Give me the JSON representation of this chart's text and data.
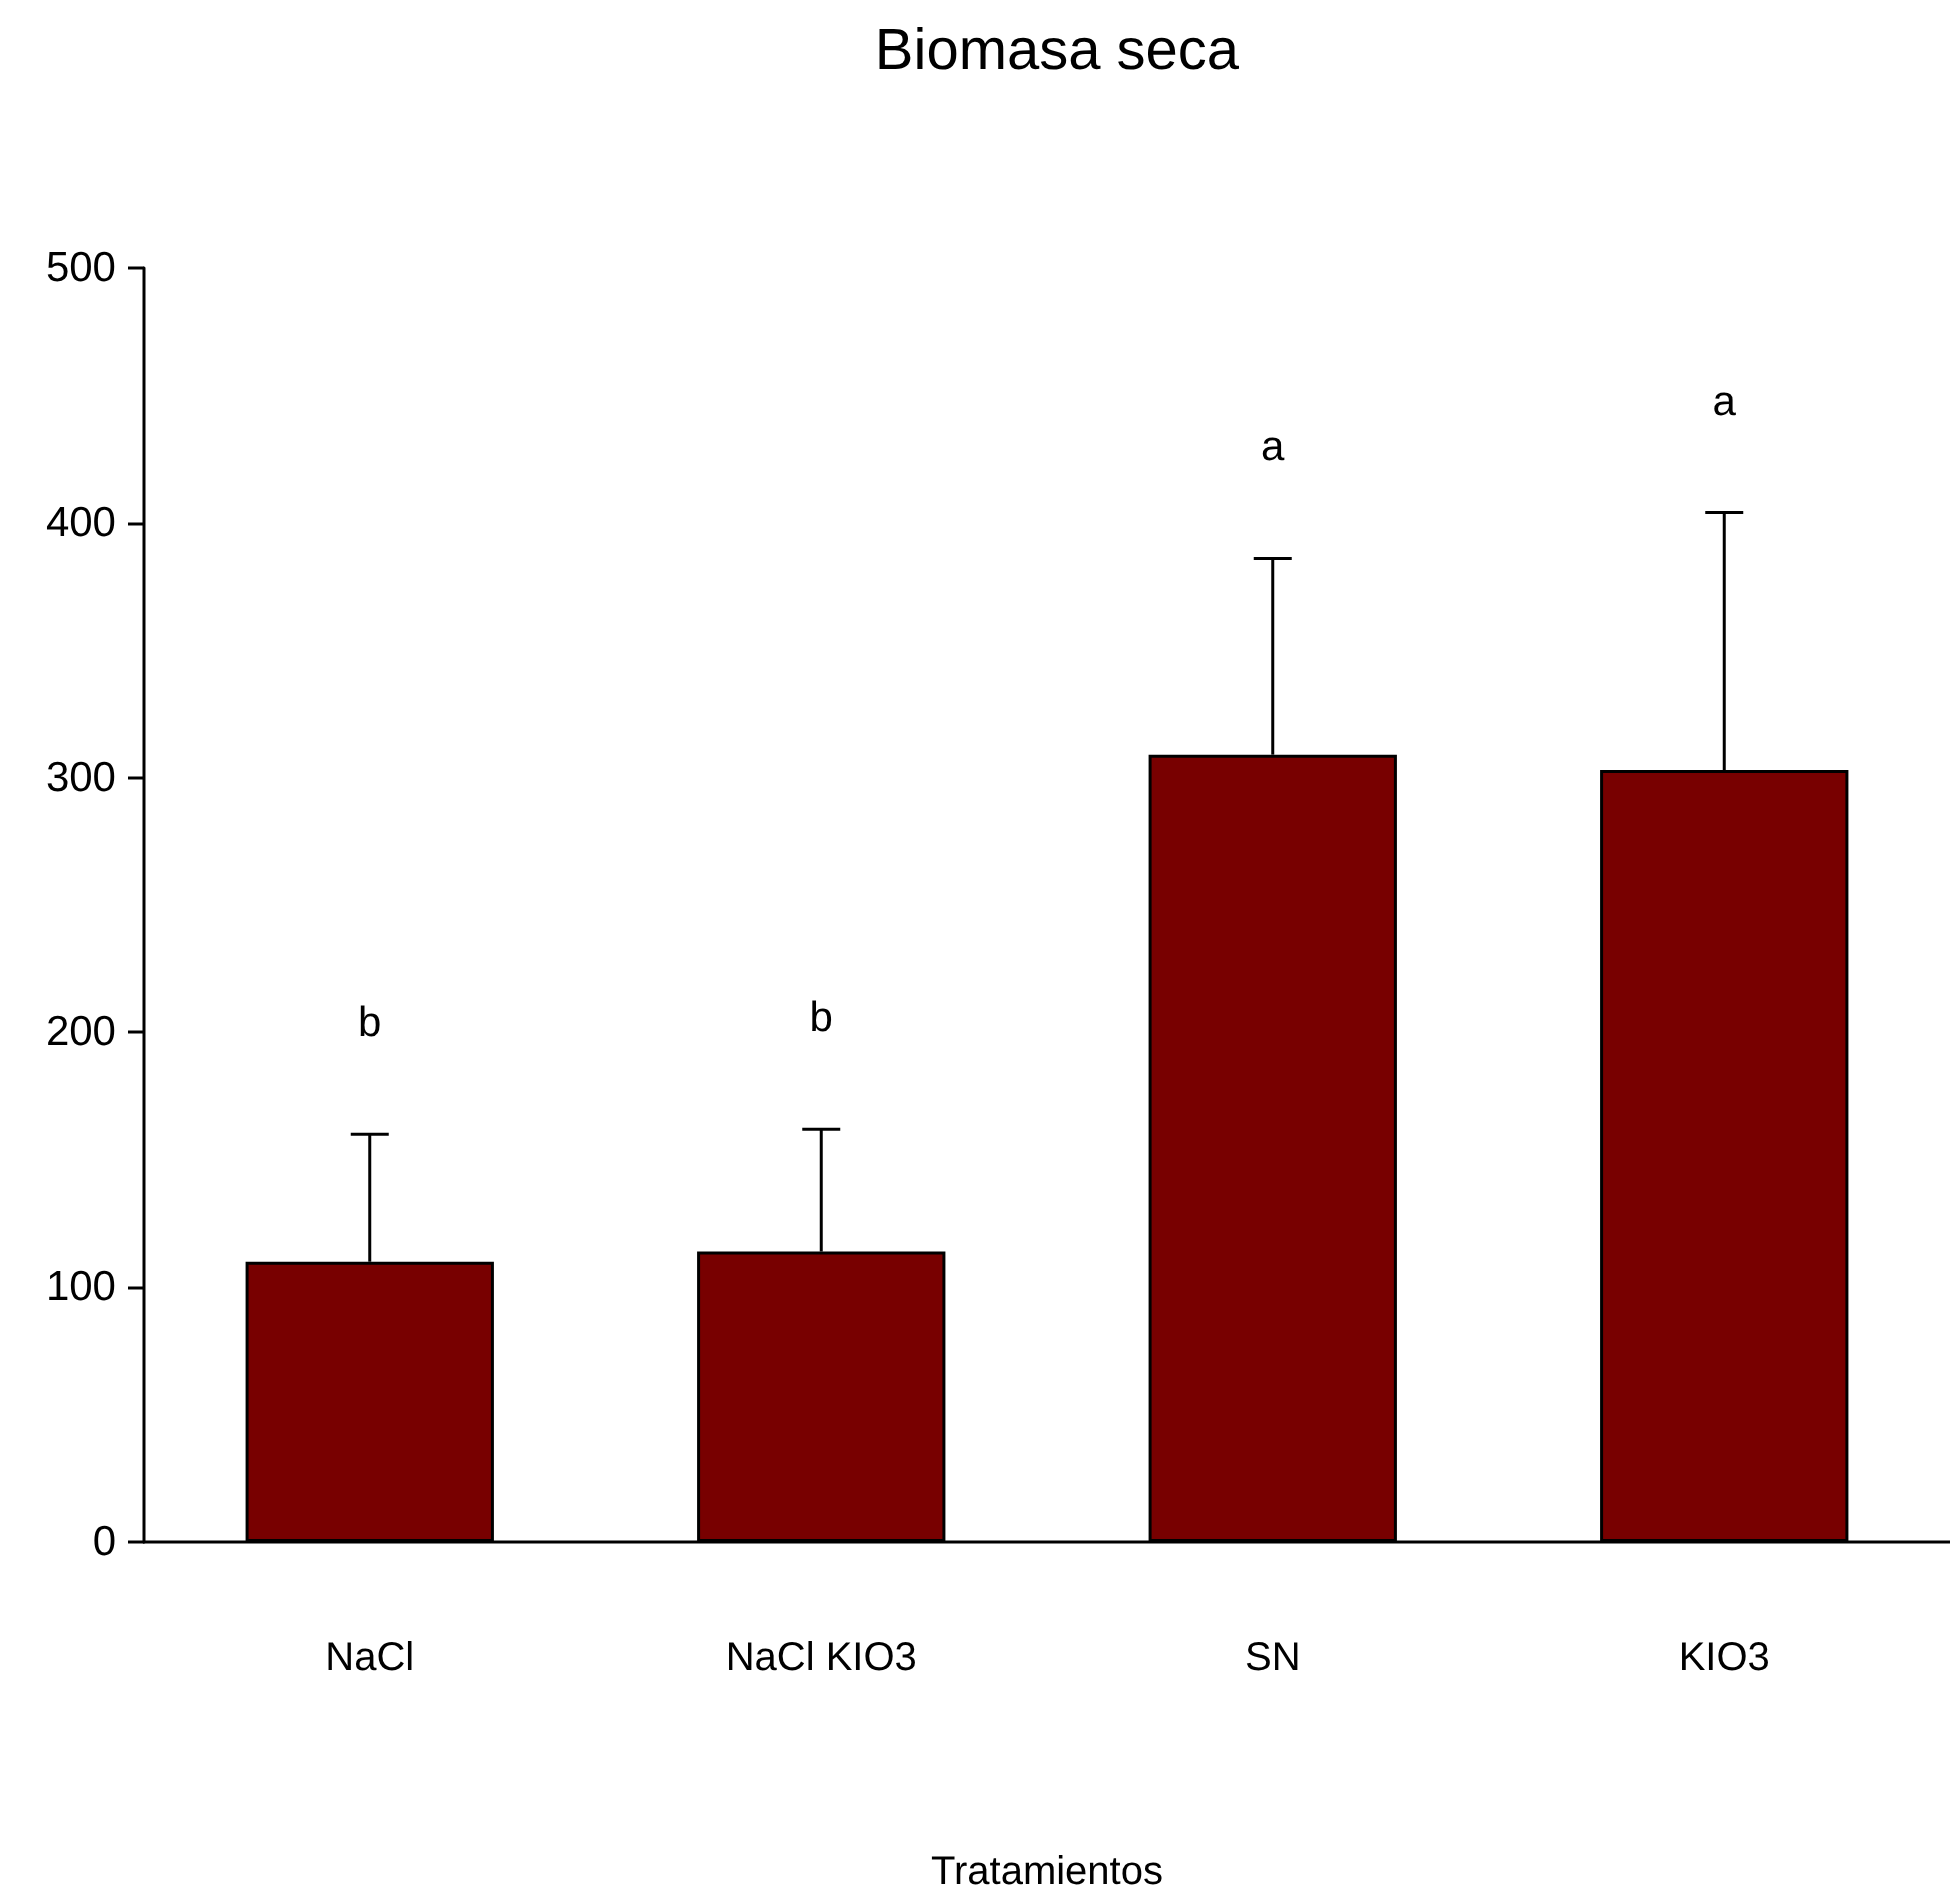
{
  "chart_data": {
    "type": "bar",
    "title": "Biomasa seca",
    "xlabel": "Tratamientos",
    "categories": [
      "NaCl",
      "NaCl KIO3",
      "SN",
      "KIO3"
    ],
    "values": [
      110,
      114,
      309,
      303
    ],
    "errors": [
      [
        110,
        160
      ],
      [
        114,
        162
      ],
      [
        309,
        386
      ],
      [
        303,
        404
      ]
    ],
    "color": "#780000",
    "ylim": [
      0,
      500
    ],
    "yticks": [
      0,
      100,
      200,
      300,
      400,
      500
    ],
    "grid": false,
    "annotations": [
      "b",
      "b",
      "a",
      "a"
    ]
  }
}
